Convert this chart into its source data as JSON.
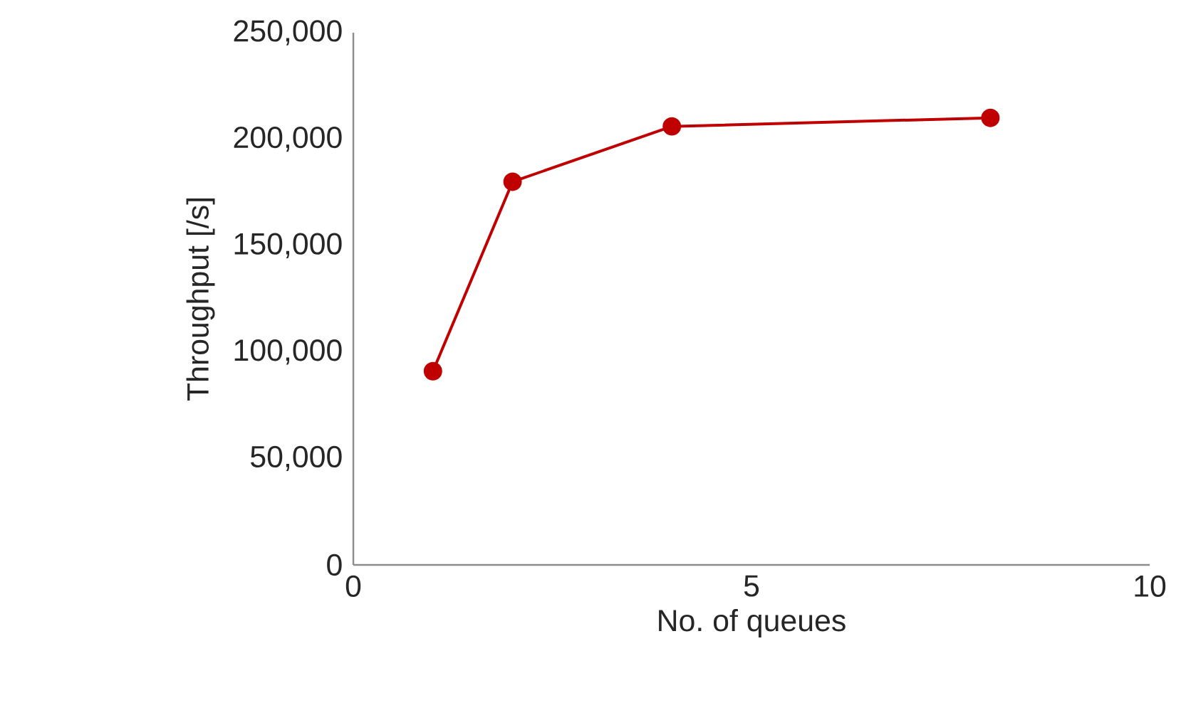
{
  "chart_data": {
    "type": "line",
    "xlabel": "No. of queues",
    "ylabel": "Throughput [/s]",
    "x": [
      1,
      2,
      4,
      8
    ],
    "series": [
      {
        "color": "#c00000",
        "values": [
          91000,
          180000,
          206000,
          210000
        ]
      }
    ],
    "xlim": [
      0,
      10
    ],
    "xticks": [
      0,
      5,
      10
    ],
    "ylim": [
      0,
      250000
    ],
    "yticks": [
      {
        "value": 0,
        "label": "0"
      },
      {
        "value": 50000,
        "label": "50,000"
      },
      {
        "value": 100000,
        "label": "100,000"
      },
      {
        "value": 150000,
        "label": "150,000"
      },
      {
        "value": 200000,
        "label": "200,000"
      },
      {
        "value": 250000,
        "label": "250,000"
      }
    ],
    "marker": "circle",
    "line_style": "solid",
    "grid": false
  }
}
